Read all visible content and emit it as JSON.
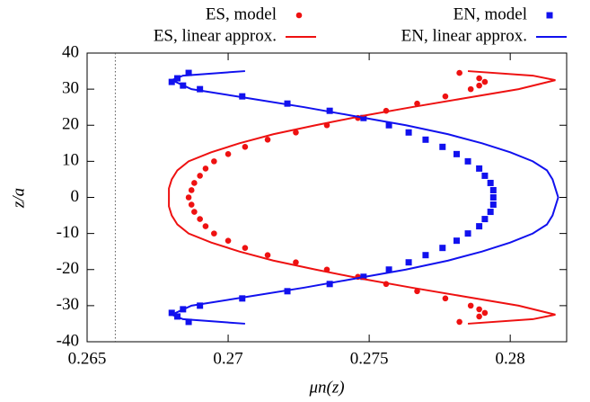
{
  "chart_data": {
    "type": "scatter",
    "xlabel": "μn(z)",
    "ylabel": "z/a",
    "xlim": [
      0.265,
      0.282
    ],
    "ylim": [
      -40,
      40
    ],
    "xticks": [
      0.265,
      0.27,
      0.275,
      0.28
    ],
    "yticks": [
      -40,
      -30,
      -20,
      -10,
      0,
      10,
      20,
      30,
      40
    ],
    "vline": 0.266,
    "series": [
      {
        "name": "ES, model",
        "color": "#ee1111",
        "kind": "points",
        "marker": "circle",
        "y": [
          -34.5,
          -33,
          -32,
          -31,
          -30,
          -28,
          -26,
          -24,
          -22,
          -20,
          -18,
          -16,
          -14,
          -12,
          -10,
          -8,
          -6,
          -4,
          -2,
          0,
          2,
          4,
          6,
          8,
          10,
          12,
          14,
          16,
          18,
          20,
          22,
          24,
          26,
          28,
          30,
          31,
          32,
          33,
          34.5
        ],
        "x": [
          0.2782,
          0.2789,
          0.2791,
          0.2789,
          0.2786,
          0.2777,
          0.2767,
          0.2756,
          0.2746,
          0.2735,
          0.2724,
          0.2714,
          0.2706,
          0.27,
          0.2695,
          0.2692,
          0.269,
          0.2688,
          0.2687,
          0.2686,
          0.2687,
          0.2688,
          0.269,
          0.2692,
          0.2695,
          0.27,
          0.2706,
          0.2714,
          0.2724,
          0.2735,
          0.2746,
          0.2756,
          0.2767,
          0.2777,
          0.2786,
          0.2789,
          0.2791,
          0.2789,
          0.2782
        ]
      },
      {
        "name": "EN, model",
        "color": "#1111ee",
        "kind": "points",
        "marker": "square",
        "y": [
          -34.5,
          -33,
          -32,
          -31,
          -30,
          -28,
          -26,
          -24,
          -22,
          -20,
          -18,
          -16,
          -14,
          -12,
          -10,
          -8,
          -6,
          -4,
          -2,
          0,
          2,
          4,
          6,
          8,
          10,
          12,
          14,
          16,
          18,
          20,
          22,
          24,
          26,
          28,
          30,
          31,
          32,
          33,
          34.5
        ],
        "x": [
          0.2686,
          0.2682,
          0.268,
          0.2684,
          0.269,
          0.2705,
          0.2721,
          0.2736,
          0.2748,
          0.2757,
          0.2764,
          0.277,
          0.2776,
          0.2781,
          0.2785,
          0.2789,
          0.2791,
          0.2793,
          0.2794,
          0.2794,
          0.2794,
          0.2793,
          0.2791,
          0.2789,
          0.2785,
          0.2781,
          0.2776,
          0.277,
          0.2764,
          0.2757,
          0.2748,
          0.2736,
          0.2721,
          0.2705,
          0.269,
          0.2684,
          0.268,
          0.2682,
          0.2686
        ]
      },
      {
        "name": "ES, linear approx.",
        "color": "#ee1111",
        "kind": "line",
        "y": [
          -35,
          -33.75,
          -32.5,
          -30,
          -27.5,
          -25,
          -22.5,
          -20,
          -17.5,
          -15,
          -12.5,
          -10,
          -7.5,
          -5,
          -2.5,
          0,
          2.5,
          5,
          7.5,
          10,
          12.5,
          15,
          17.5,
          20,
          22.5,
          25,
          27.5,
          30,
          32.5,
          33.75,
          35
        ],
        "x": [
          0.2785,
          0.2808,
          0.2816,
          0.2803,
          0.2784,
          0.2765,
          0.2747,
          0.2731,
          0.2716,
          0.2704,
          0.2694,
          0.2686,
          0.2682,
          0.268,
          0.2679,
          0.2679,
          0.2679,
          0.268,
          0.2682,
          0.2686,
          0.2694,
          0.2704,
          0.2716,
          0.2731,
          0.2747,
          0.2765,
          0.2784,
          0.2803,
          0.2816,
          0.2808,
          0.2785
        ]
      },
      {
        "name": "EN, linear approx.",
        "color": "#1111ee",
        "kind": "line",
        "y": [
          -35,
          -33.75,
          -32.5,
          -30,
          -27.5,
          -25,
          -22.5,
          -20,
          -17.5,
          -15,
          -12.5,
          -10,
          -7.5,
          -5,
          -2.5,
          0,
          2.5,
          5,
          7.5,
          10,
          12.5,
          15,
          17.5,
          20,
          22.5,
          25,
          27.5,
          30,
          32.5,
          33.75,
          35
        ],
        "x": [
          0.2706,
          0.2684,
          0.268,
          0.2687,
          0.2707,
          0.2727,
          0.2745,
          0.2763,
          0.2778,
          0.279,
          0.28,
          0.2808,
          0.2813,
          0.2815,
          0.2816,
          0.2817,
          0.2816,
          0.2815,
          0.2813,
          0.2808,
          0.28,
          0.279,
          0.2778,
          0.2763,
          0.2745,
          0.2727,
          0.2707,
          0.2687,
          0.268,
          0.2684,
          0.2706
        ]
      }
    ]
  }
}
